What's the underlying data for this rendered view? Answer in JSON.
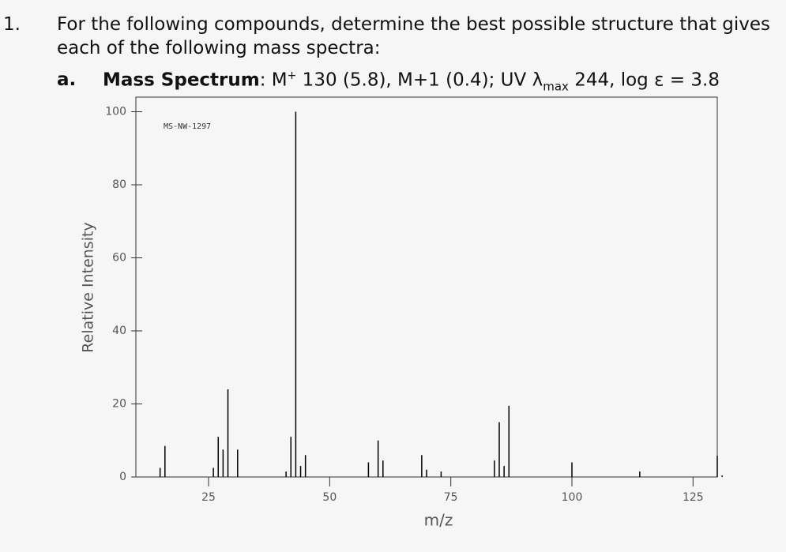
{
  "question": {
    "number": "1.",
    "line1": "For the following compounds, determine the best possible structure that gives",
    "line2": "each of the following mass spectra:",
    "part": {
      "letter": "a.",
      "heading": "Mass Spectrum",
      "colon": ":",
      "text1": " M",
      "sup": "+",
      "text2": " 130 (5.8), M+1 (0.4); UV ",
      "lambda": "λ",
      "sub": "max",
      "text3": " 244, log ε = 3.8"
    }
  },
  "chart_data": {
    "type": "stick",
    "annotation": "MS-NW-1297",
    "x_label": "m/z",
    "y_label": "Relative Intensity",
    "color": "#000000",
    "x": [
      15,
      16,
      26,
      27,
      28,
      29,
      31,
      41,
      42,
      43,
      44,
      45,
      58,
      60,
      61,
      69,
      70,
      73,
      84,
      85,
      86,
      87,
      100,
      114,
      130,
      131
    ],
    "values": [
      2.5,
      8.5,
      2.5,
      11,
      7.5,
      24,
      7.5,
      1.5,
      11,
      100,
      3,
      6,
      4,
      10,
      4.5,
      6,
      2,
      1.5,
      4.5,
      15,
      3,
      19.5,
      4,
      1.5,
      5.8,
      0.4
    ],
    "xlim": [
      10,
      130
    ],
    "ylim": [
      0,
      104
    ],
    "xticks": [
      25,
      50,
      75,
      100,
      125
    ],
    "yticks": [
      0,
      20,
      40,
      60,
      80,
      100
    ]
  }
}
